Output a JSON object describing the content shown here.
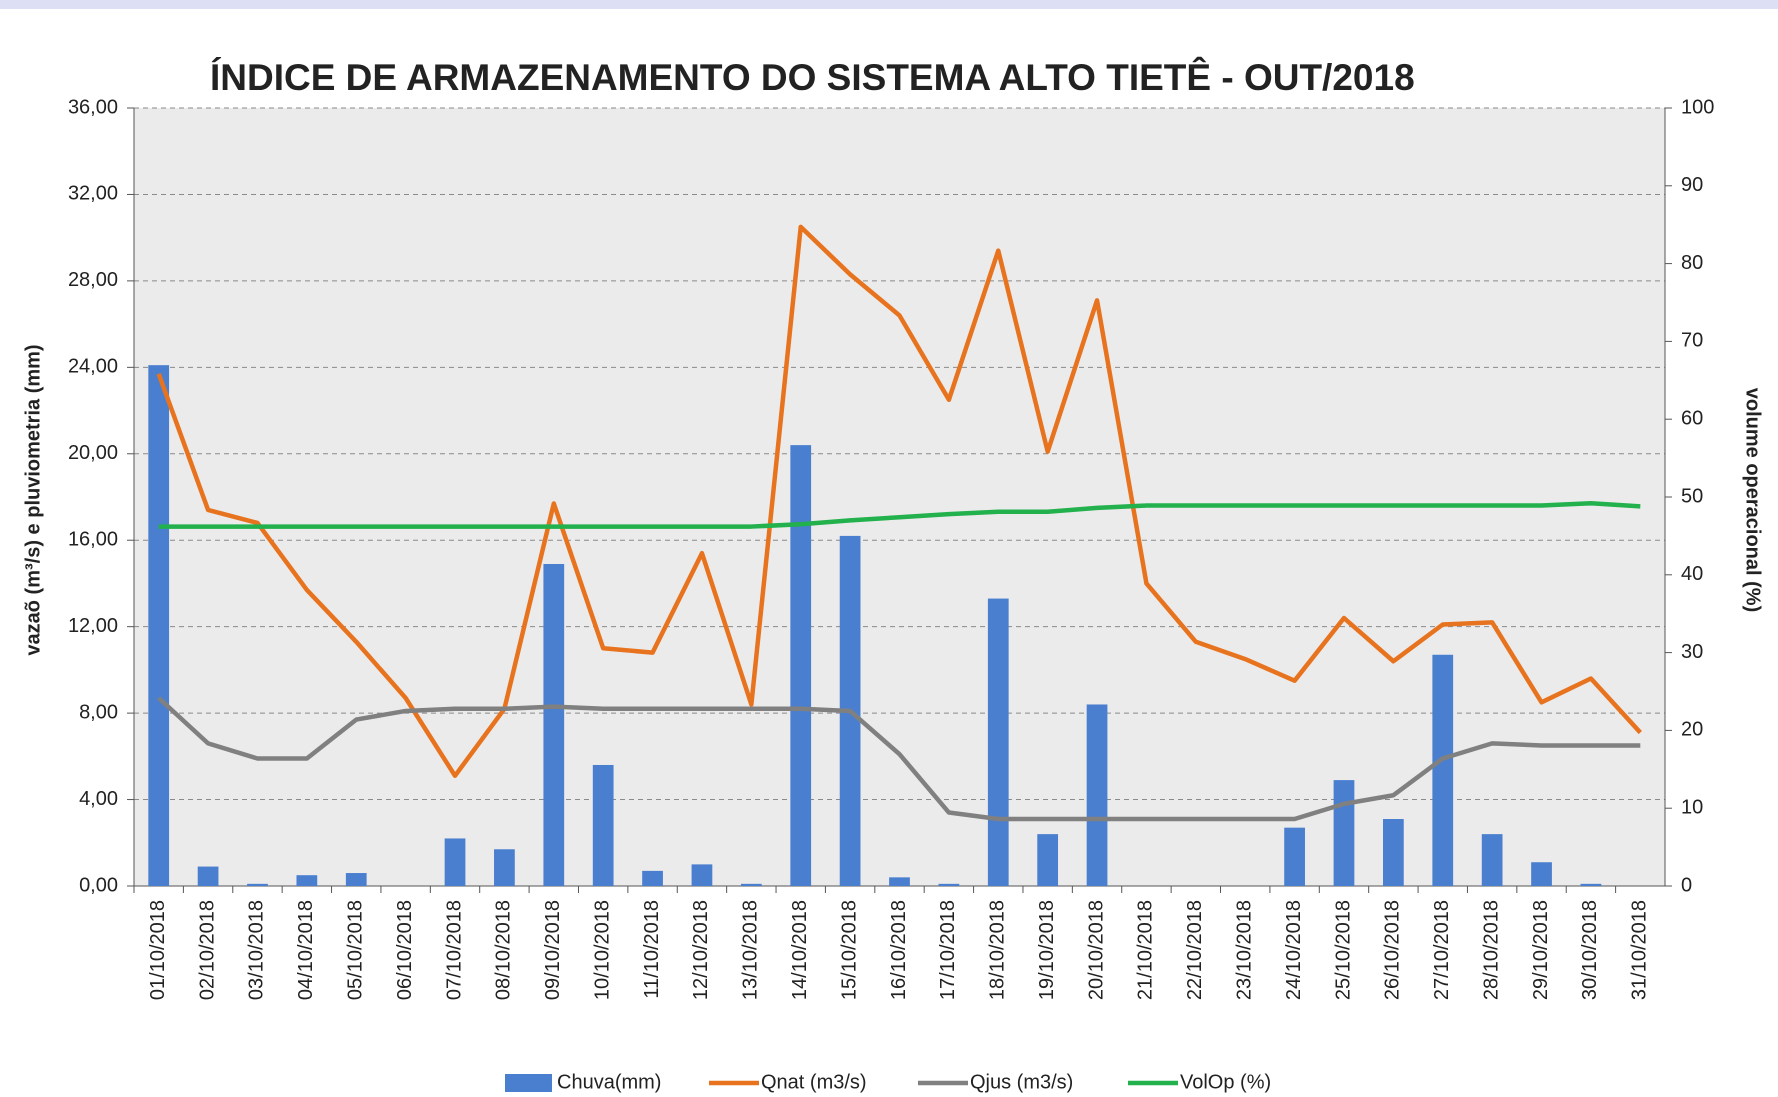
{
  "chart_data": {
    "type": "combo",
    "title": "ÍNDICE DE ARMAZENAMENTO DO SISTEMA ALTO TIETÊ - OUT/2018",
    "ylabel": "vazaõ (m³/s) e pluviometria (mm)",
    "y2label": "volume operacional (%)",
    "categories": [
      "01/10/2018",
      "02/10/2018",
      "03/10/2018",
      "04/10/2018",
      "05/10/2018",
      "06/10/2018",
      "07/10/2018",
      "08/10/2018",
      "09/10/2018",
      "10/10/2018",
      "11/10/2018",
      "12/10/2018",
      "13/10/2018",
      "14/10/2018",
      "15/10/2018",
      "16/10/2018",
      "17/10/2018",
      "18/10/2018",
      "19/10/2018",
      "20/10/2018",
      "21/10/2018",
      "22/10/2018",
      "23/10/2018",
      "24/10/2018",
      "25/10/2018",
      "26/10/2018",
      "27/10/2018",
      "28/10/2018",
      "29/10/2018",
      "30/10/2018",
      "31/10/2018"
    ],
    "series": [
      {
        "name": "Chuva(mm)",
        "type": "bar",
        "color": "#4a7fd0",
        "values": [
          24.1,
          0.9,
          0.1,
          0.5,
          0.6,
          0,
          2.2,
          1.7,
          14.9,
          5.6,
          0.7,
          1.0,
          0.1,
          20.4,
          16.2,
          0.4,
          0.1,
          13.3,
          2.4,
          8.4,
          0,
          0,
          0,
          2.7,
          4.9,
          3.1,
          10.7,
          2.4,
          1.1,
          0.1,
          0
        ]
      },
      {
        "name": "Qnat (m3/s)",
        "type": "line",
        "color": "#e8731f",
        "values": [
          23.7,
          17.4,
          16.8,
          13.7,
          11.3,
          8.7,
          5.1,
          8.2,
          17.7,
          11.0,
          10.8,
          15.4,
          8.4,
          30.5,
          28.3,
          26.4,
          22.5,
          29.4,
          20.1,
          27.1,
          14.0,
          11.3,
          10.5,
          9.5,
          12.4,
          10.4,
          12.1,
          12.2,
          8.5,
          9.6,
          7.1
        ]
      },
      {
        "name": "Qjus (m3/s)",
        "type": "line",
        "color": "#808080",
        "values": [
          8.7,
          6.6,
          5.9,
          5.9,
          7.7,
          8.1,
          8.2,
          8.2,
          8.3,
          8.2,
          8.2,
          8.2,
          8.2,
          8.2,
          8.1,
          6.1,
          3.4,
          3.1,
          3.1,
          3.1,
          3.1,
          3.1,
          3.1,
          3.1,
          3.8,
          4.2,
          5.9,
          6.6,
          6.5,
          6.5,
          6.5
        ]
      },
      {
        "name": "VolOp (%)",
        "type": "line",
        "axis": "y2",
        "color": "#22b14c",
        "values": [
          46.2,
          46.2,
          46.2,
          46.2,
          46.2,
          46.2,
          46.2,
          46.2,
          46.2,
          46.2,
          46.2,
          46.2,
          46.2,
          46.5,
          47.0,
          47.4,
          47.8,
          48.1,
          48.1,
          48.6,
          48.9,
          48.9,
          48.9,
          48.9,
          48.9,
          48.9,
          48.9,
          48.9,
          48.9,
          49.2,
          48.8
        ]
      }
    ],
    "ylim": [
      0,
      36
    ],
    "yticks": [
      {
        "value": 0,
        "label": "0,00"
      },
      {
        "value": 4,
        "label": "4,00"
      },
      {
        "value": 8,
        "label": "8,00"
      },
      {
        "value": 12,
        "label": "12,00"
      },
      {
        "value": 16,
        "label": "16,00"
      },
      {
        "value": 20,
        "label": "20,00"
      },
      {
        "value": 24,
        "label": "24,00"
      },
      {
        "value": 28,
        "label": "28,00"
      },
      {
        "value": 32,
        "label": "32,00"
      },
      {
        "value": 36,
        "label": "36,00"
      }
    ],
    "y2lim": [
      0,
      100
    ],
    "y2ticks": [
      0,
      10,
      20,
      30,
      40,
      50,
      60,
      70,
      80,
      90,
      100
    ],
    "grid": true,
    "legend": "bottom"
  }
}
